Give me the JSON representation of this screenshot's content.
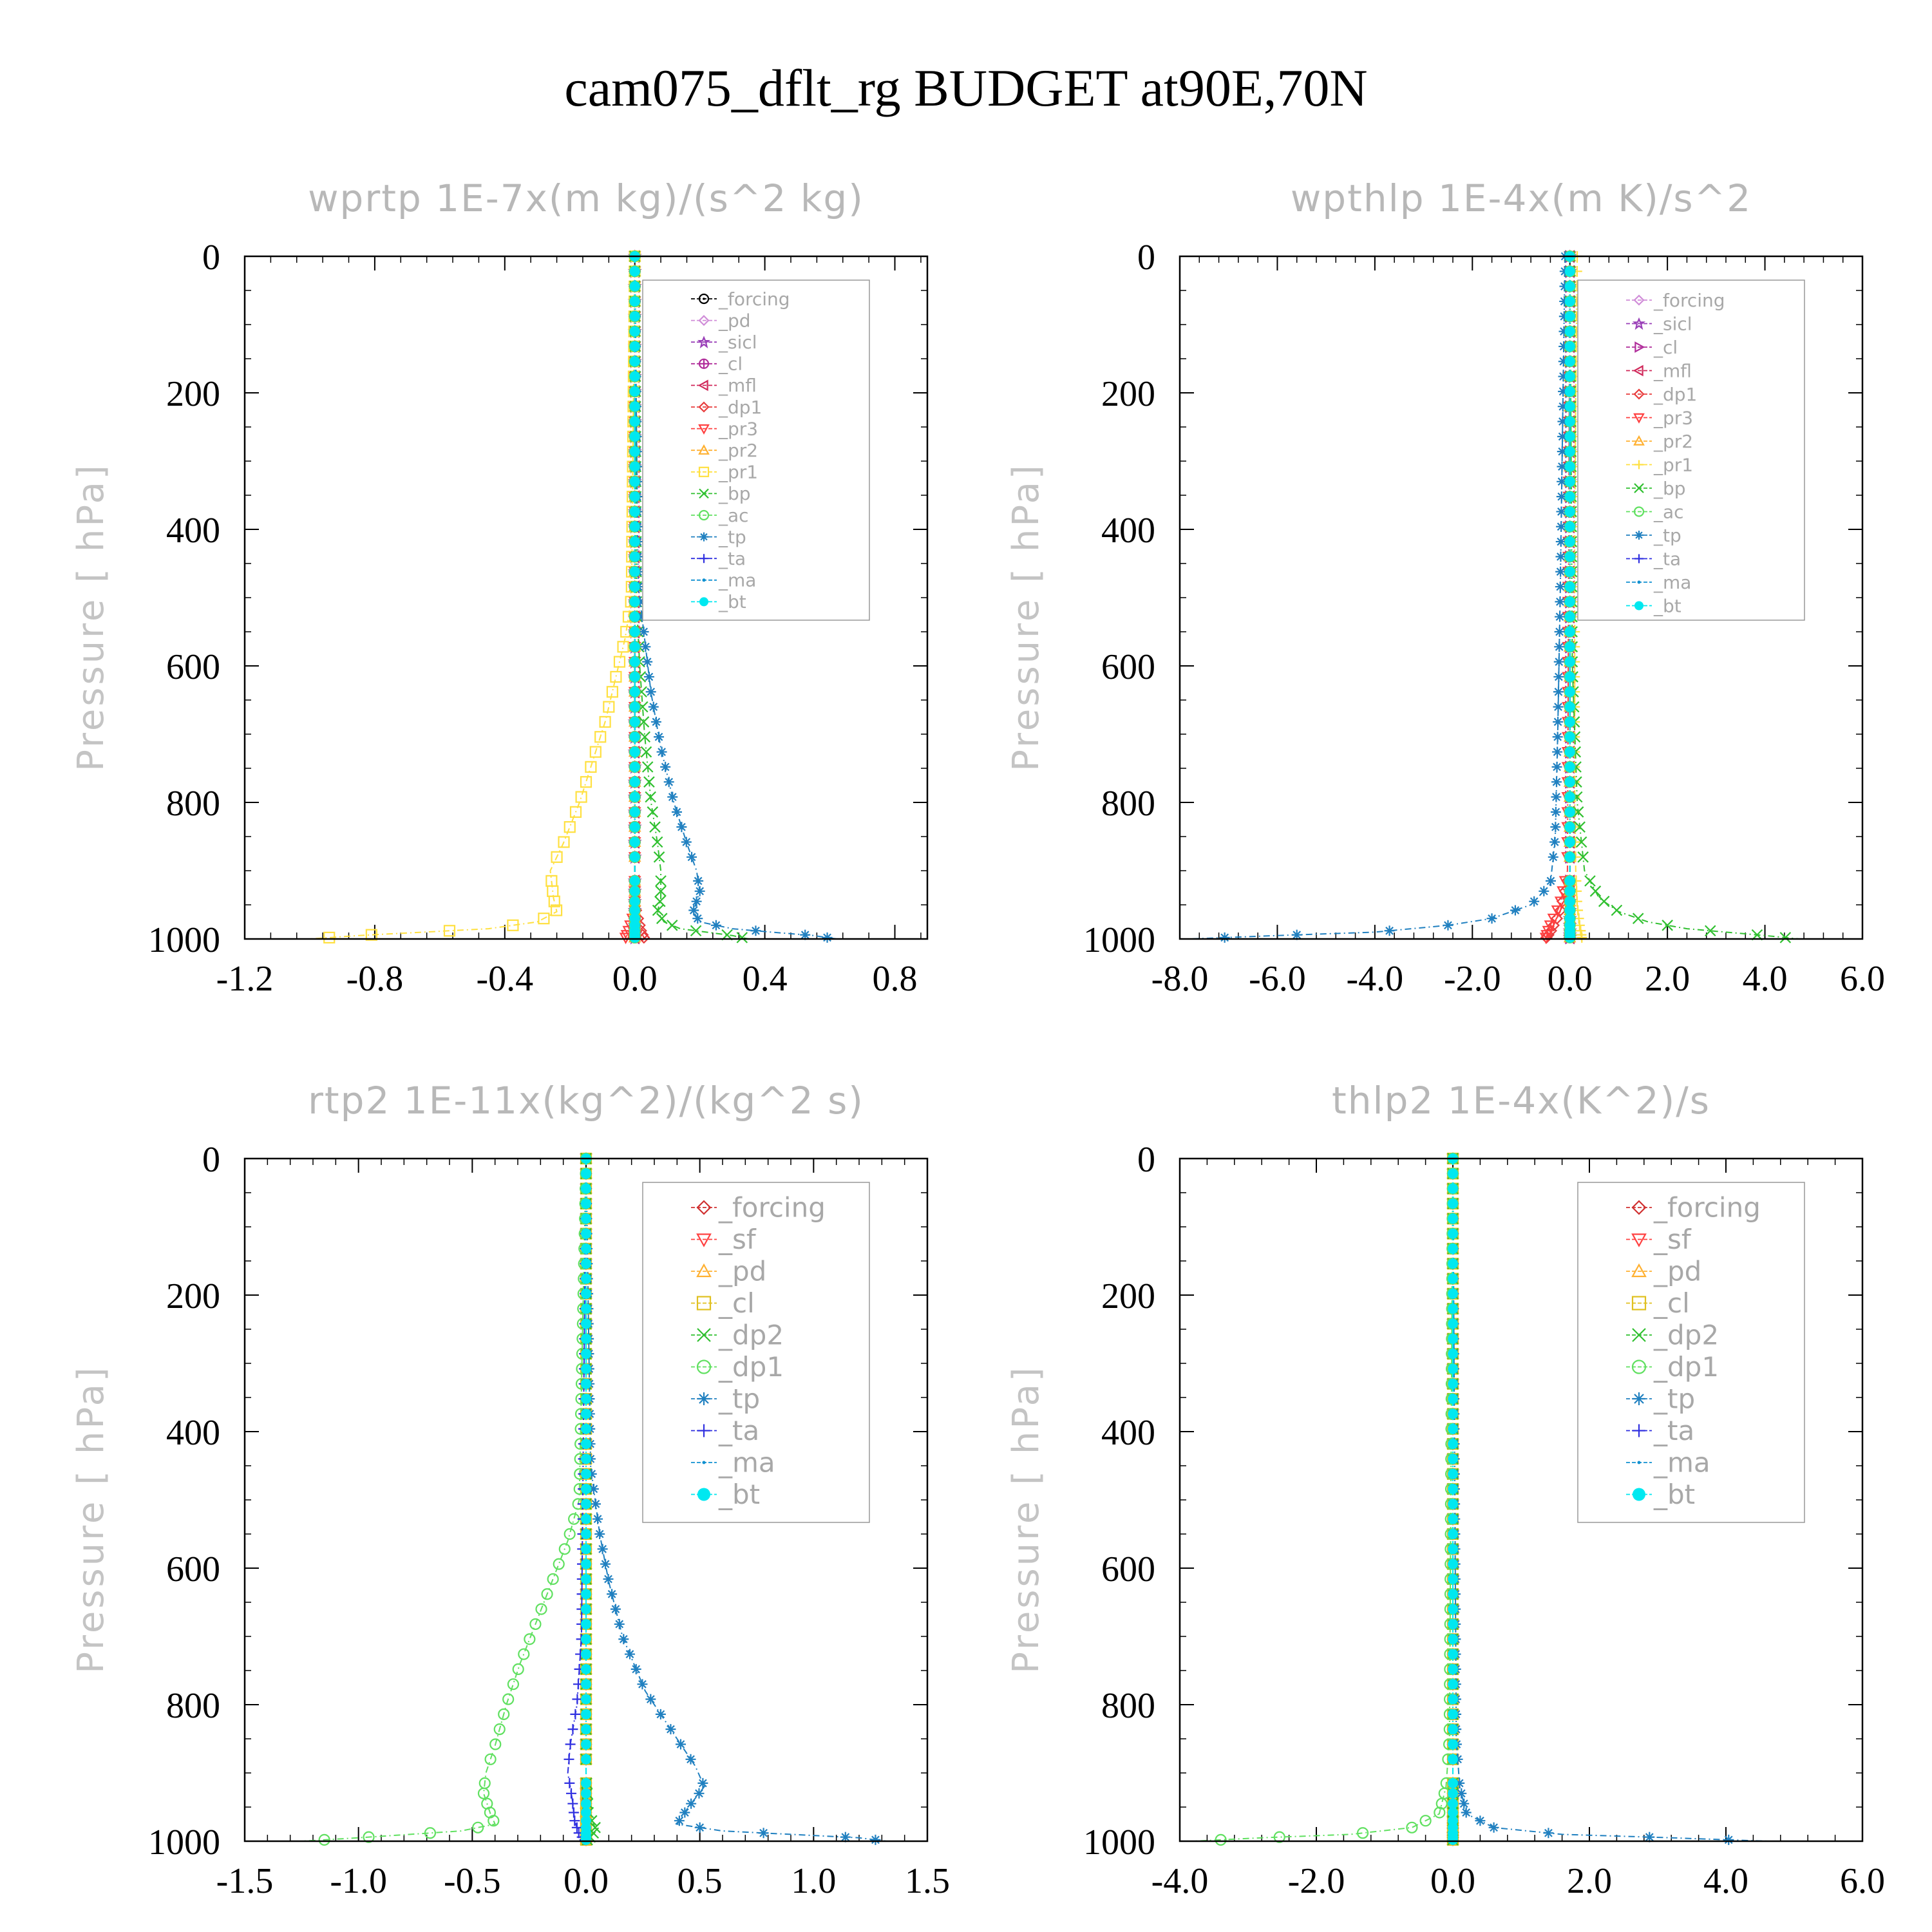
{
  "figure": {
    "title": "cam075_dflt_rg  BUDGET at90E,70N"
  },
  "chart_data": [
    {
      "type": "line",
      "title": "wprtp  1E-7x(m kg)/(s^2 kg)",
      "ylabel": "Pressure [ hPa]",
      "xlim": [
        -1.2,
        0.9
      ],
      "ylim": [
        0,
        1000
      ],
      "y_inverted": true,
      "xticks": [
        -1.2,
        -0.8,
        -0.4,
        0.0,
        0.4,
        0.8
      ],
      "xtick_labels": [
        "-1.2",
        "-0.8",
        "-0.4",
        "0.0",
        "0.4",
        "0.8"
      ],
      "yticks": [
        0,
        200,
        400,
        600,
        800,
        1000
      ],
      "legend_position": "top-right",
      "series": [
        {
          "name": "_forcing",
          "color": "#000000",
          "marker": "circle-dot",
          "pressure": [
            0,
            1000
          ],
          "values": [
            0,
            0
          ]
        },
        {
          "name": "_pd",
          "color": "#d08cd8",
          "marker": "diamond",
          "pressure": [
            0,
            1000
          ],
          "values": [
            0,
            0
          ]
        },
        {
          "name": "_sicl",
          "color": "#9a40b8",
          "marker": "star",
          "pressure": [
            0,
            1000
          ],
          "values": [
            0,
            0
          ]
        },
        {
          "name": "_cl",
          "color": "#b02c9a",
          "marker": "circle-plus",
          "pressure": [
            0,
            1000
          ],
          "values": [
            0,
            0
          ]
        },
        {
          "name": "_mfl",
          "color": "#d0285a",
          "marker": "triangle-left",
          "pressure": [
            0,
            1000
          ],
          "values": [
            0,
            0
          ]
        },
        {
          "name": "_dp1",
          "color": "#e83c3c",
          "marker": "diamond",
          "pressure": [
            0,
            950,
            990,
            1000
          ],
          "values": [
            0,
            0,
            0.02,
            0.03
          ]
        },
        {
          "name": "_pr3",
          "color": "#ff4040",
          "marker": "triangle-down",
          "pressure": [
            0,
            960,
            990,
            1000
          ],
          "values": [
            0,
            0,
            -0.02,
            -0.03
          ]
        },
        {
          "name": "_pr2",
          "color": "#ffb030",
          "marker": "triangle-up",
          "pressure": [
            0,
            1000
          ],
          "values": [
            0,
            0
          ]
        },
        {
          "name": "_pr1",
          "color": "#ffe040",
          "marker": "square",
          "pressure": [
            0,
            500,
            560,
            620,
            680,
            740,
            800,
            860,
            900,
            940,
            960,
            975,
            985,
            990,
            995,
            1000
          ],
          "values": [
            0,
            -0.01,
            -0.03,
            -0.06,
            -0.09,
            -0.13,
            -0.17,
            -0.22,
            -0.26,
            -0.25,
            -0.24,
            -0.3,
            -0.45,
            -0.65,
            -0.85,
            -1.0
          ]
        },
        {
          "name": "_bp",
          "color": "#30c030",
          "marker": "x",
          "pressure": [
            0,
            500,
            600,
            700,
            800,
            860,
            900,
            940,
            960,
            975,
            985,
            990,
            995,
            1000
          ],
          "values": [
            0,
            0.005,
            0.015,
            0.03,
            0.05,
            0.07,
            0.08,
            0.08,
            0.07,
            0.09,
            0.14,
            0.22,
            0.3,
            0.35
          ]
        },
        {
          "name": "_ac",
          "color": "#60e060",
          "marker": "circle",
          "pressure": [
            0,
            1000
          ],
          "values": [
            0,
            0
          ]
        },
        {
          "name": "_tp",
          "color": "#2080c0",
          "marker": "asterisk",
          "pressure": [
            0,
            480,
            560,
            640,
            720,
            800,
            860,
            900,
            930,
            960,
            975,
            985,
            990,
            995,
            1000
          ],
          "values": [
            0,
            0.01,
            0.03,
            0.05,
            0.08,
            0.12,
            0.16,
            0.19,
            0.2,
            0.18,
            0.2,
            0.3,
            0.42,
            0.55,
            0.62
          ]
        },
        {
          "name": "_ta",
          "color": "#3030e0",
          "marker": "plus",
          "pressure": [
            0,
            1000
          ],
          "values": [
            0,
            0
          ]
        },
        {
          "name": "_ma",
          "color": "#1090d0",
          "marker": "dot",
          "pressure": [
            0,
            1000
          ],
          "values": [
            0,
            0
          ]
        },
        {
          "name": "_bt",
          "color": "#00e8f0",
          "marker": "filled-circle",
          "pressure": [
            0,
            1000
          ],
          "values": [
            0,
            0
          ]
        }
      ]
    },
    {
      "type": "line",
      "title": "wpthlp  1E-4x(m K)/s^2",
      "ylabel": "Pressure [ hPa]",
      "xlim": [
        -8.0,
        6.0
      ],
      "ylim": [
        0,
        1000
      ],
      "y_inverted": true,
      "xticks": [
        -8.0,
        -6.0,
        -4.0,
        -2.0,
        0.0,
        2.0,
        4.0,
        6.0
      ],
      "xtick_labels": [
        "-8.0",
        "-6.0",
        "-4.0",
        "-2.0",
        "0.0",
        "2.0",
        "4.0",
        "6.0"
      ],
      "yticks": [
        0,
        200,
        400,
        600,
        800,
        1000
      ],
      "legend_position": "top-right",
      "series": [
        {
          "name": "_forcing",
          "color": "#d08cd8",
          "marker": "diamond",
          "pressure": [
            0,
            1000
          ],
          "values": [
            0,
            0
          ]
        },
        {
          "name": "_sicl",
          "color": "#9a40b8",
          "marker": "star",
          "pressure": [
            0,
            1000
          ],
          "values": [
            0,
            0
          ]
        },
        {
          "name": "_cl",
          "color": "#b02c9a",
          "marker": "triangle-right",
          "pressure": [
            0,
            1000
          ],
          "values": [
            0,
            0
          ]
        },
        {
          "name": "_mfl",
          "color": "#d0285a",
          "marker": "triangle-left",
          "pressure": [
            0,
            1000
          ],
          "values": [
            0,
            0
          ]
        },
        {
          "name": "_dp1",
          "color": "#e83c3c",
          "marker": "diamond",
          "pressure": [
            0,
            900,
            960,
            990,
            1000
          ],
          "values": [
            0,
            0,
            -0.2,
            -0.4,
            -0.5
          ]
        },
        {
          "name": "_pr3",
          "color": "#ff4040",
          "marker": "triangle-down",
          "pressure": [
            0,
            900,
            950,
            980,
            1000
          ],
          "values": [
            0,
            -0.05,
            -0.2,
            -0.4,
            -0.5
          ]
        },
        {
          "name": "_pr2",
          "color": "#ffb030",
          "marker": "triangle-up",
          "pressure": [
            0,
            1000
          ],
          "values": [
            0,
            0
          ]
        },
        {
          "name": "_pr1",
          "color": "#ffe040",
          "marker": "plus",
          "pressure": [
            0,
            200,
            400,
            600,
            800,
            900,
            950,
            980,
            1000
          ],
          "values": [
            0.15,
            0.12,
            0.1,
            0.1,
            0.1,
            0.12,
            0.15,
            0.2,
            0.25
          ]
        },
        {
          "name": "_bp",
          "color": "#30c030",
          "marker": "x",
          "pressure": [
            0,
            600,
            800,
            900,
            940,
            960,
            975,
            985,
            990,
            995,
            1000
          ],
          "values": [
            0,
            0.05,
            0.15,
            0.3,
            0.6,
            1.0,
            1.6,
            2.4,
            3.2,
            4.0,
            4.7
          ]
        },
        {
          "name": "_ac",
          "color": "#60e060",
          "marker": "circle",
          "pressure": [
            0,
            1000
          ],
          "values": [
            0,
            0
          ]
        },
        {
          "name": "_tp",
          "color": "#2080c0",
          "marker": "asterisk",
          "pressure": [
            0,
            500,
            700,
            850,
            920,
            950,
            970,
            980,
            990,
            995,
            1000
          ],
          "values": [
            -0.1,
            -0.2,
            -0.25,
            -0.3,
            -0.4,
            -0.8,
            -1.6,
            -2.5,
            -4.0,
            -6.0,
            -7.8
          ]
        },
        {
          "name": "_ta",
          "color": "#3030e0",
          "marker": "plus",
          "pressure": [
            0,
            1000
          ],
          "values": [
            0,
            0
          ]
        },
        {
          "name": "_ma",
          "color": "#1090d0",
          "marker": "dot",
          "pressure": [
            0,
            1000
          ],
          "values": [
            0,
            0
          ]
        },
        {
          "name": "_bt",
          "color": "#00e8f0",
          "marker": "filled-circle",
          "pressure": [
            0,
            1000
          ],
          "values": [
            0,
            0
          ]
        }
      ]
    },
    {
      "type": "line",
      "title": "rtp2  1E-11x(kg^2)/(kg^2 s)",
      "ylabel": "Pressure [ hPa]",
      "xlim": [
        -1.5,
        1.5
      ],
      "ylim": [
        0,
        1000
      ],
      "y_inverted": true,
      "xticks": [
        -1.5,
        -1.0,
        -0.5,
        0.0,
        0.5,
        1.0,
        1.5
      ],
      "xtick_labels": [
        "-1.5",
        "-1.0",
        "-0.5",
        "0.0",
        "0.5",
        "1.0",
        "1.5"
      ],
      "yticks": [
        0,
        200,
        400,
        600,
        800,
        1000
      ],
      "legend_position": "top-right",
      "series": [
        {
          "name": "_forcing",
          "color": "#d03030",
          "marker": "diamond",
          "pressure": [
            0,
            1000
          ],
          "values": [
            0,
            0
          ]
        },
        {
          "name": "_sf",
          "color": "#ff4040",
          "marker": "triangle-down",
          "pressure": [
            0,
            1000
          ],
          "values": [
            0,
            0
          ]
        },
        {
          "name": "_pd",
          "color": "#ffb030",
          "marker": "triangle-up",
          "pressure": [
            0,
            1000
          ],
          "values": [
            0,
            0
          ]
        },
        {
          "name": "_cl",
          "color": "#e0c020",
          "marker": "square",
          "pressure": [
            0,
            1000
          ],
          "values": [
            0,
            0
          ]
        },
        {
          "name": "_dp2",
          "color": "#30c030",
          "marker": "x",
          "pressure": [
            0,
            900,
            960,
            980,
            990,
            1000
          ],
          "values": [
            0,
            0,
            0.01,
            0.04,
            0.03,
            0
          ]
        },
        {
          "name": "_dp1",
          "color": "#60e060",
          "marker": "circle",
          "pressure": [
            0,
            500,
            560,
            620,
            680,
            740,
            800,
            860,
            900,
            930,
            960,
            975,
            985,
            995,
            1000
          ],
          "values": [
            0,
            -0.03,
            -0.08,
            -0.15,
            -0.22,
            -0.29,
            -0.35,
            -0.4,
            -0.44,
            -0.45,
            -0.42,
            -0.4,
            -0.55,
            -1.0,
            -1.25
          ]
        },
        {
          "name": "_tp",
          "color": "#2080c0",
          "marker": "asterisk",
          "pressure": [
            0,
            450,
            550,
            620,
            700,
            780,
            850,
            890,
            920,
            950,
            975,
            985,
            990,
            995,
            1000
          ],
          "values": [
            0,
            0.02,
            0.06,
            0.1,
            0.16,
            0.26,
            0.4,
            0.48,
            0.52,
            0.45,
            0.4,
            0.6,
            0.9,
            1.2,
            1.32
          ]
        },
        {
          "name": "_ta",
          "color": "#3030e0",
          "marker": "plus",
          "pressure": [
            0,
            700,
            800,
            860,
            900,
            940,
            970,
            990,
            1000
          ],
          "values": [
            0,
            -0.02,
            -0.04,
            -0.07,
            -0.08,
            -0.06,
            -0.05,
            -0.03,
            0
          ]
        },
        {
          "name": "_ma",
          "color": "#1090d0",
          "marker": "dot",
          "pressure": [
            0,
            1000
          ],
          "values": [
            0,
            0
          ]
        },
        {
          "name": "_bt",
          "color": "#00e8f0",
          "marker": "filled-circle",
          "pressure": [
            0,
            1000
          ],
          "values": [
            0,
            0
          ]
        }
      ]
    },
    {
      "type": "line",
      "title": "thlp2  1E-4x(K^2)/s",
      "ylabel": "Pressure [ hPa]",
      "xlim": [
        -4.0,
        6.0
      ],
      "ylim": [
        0,
        1000
      ],
      "y_inverted": true,
      "xticks": [
        -4.0,
        -2.0,
        0.0,
        2.0,
        4.0,
        6.0
      ],
      "xtick_labels": [
        "-4.0",
        "-2.0",
        "0.0",
        "2.0",
        "4.0",
        "6.0"
      ],
      "yticks": [
        0,
        200,
        400,
        600,
        800,
        1000
      ],
      "legend_position": "top-right",
      "series": [
        {
          "name": "_forcing",
          "color": "#d03030",
          "marker": "diamond",
          "pressure": [
            0,
            1000
          ],
          "values": [
            0,
            0
          ]
        },
        {
          "name": "_sf",
          "color": "#ff4040",
          "marker": "triangle-down",
          "pressure": [
            0,
            1000
          ],
          "values": [
            0,
            0
          ]
        },
        {
          "name": "_pd",
          "color": "#ffb030",
          "marker": "triangle-up",
          "pressure": [
            0,
            1000
          ],
          "values": [
            0,
            0
          ]
        },
        {
          "name": "_cl",
          "color": "#e0c020",
          "marker": "square",
          "pressure": [
            0,
            1000
          ],
          "values": [
            0,
            0
          ]
        },
        {
          "name": "_dp2",
          "color": "#30c030",
          "marker": "x",
          "pressure": [
            0,
            1000
          ],
          "values": [
            0,
            0
          ]
        },
        {
          "name": "_dp1",
          "color": "#60e060",
          "marker": "circle",
          "pressure": [
            0,
            850,
            920,
            960,
            980,
            990,
            995,
            1000
          ],
          "values": [
            0,
            -0.05,
            -0.1,
            -0.2,
            -0.6,
            -1.5,
            -2.8,
            -3.8
          ]
        },
        {
          "name": "_tp",
          "color": "#2080c0",
          "marker": "asterisk",
          "pressure": [
            0,
            850,
            920,
            960,
            980,
            990,
            995,
            1000
          ],
          "values": [
            0,
            0.05,
            0.1,
            0.2,
            0.6,
            1.6,
            3.2,
            4.6
          ]
        },
        {
          "name": "_ta",
          "color": "#3030e0",
          "marker": "plus",
          "pressure": [
            0,
            1000
          ],
          "values": [
            0,
            0
          ]
        },
        {
          "name": "_ma",
          "color": "#1090d0",
          "marker": "dot",
          "pressure": [
            0,
            1000
          ],
          "values": [
            0,
            0
          ]
        },
        {
          "name": "_bt",
          "color": "#00e8f0",
          "marker": "filled-circle",
          "pressure": [
            0,
            1000
          ],
          "values": [
            0,
            0
          ]
        }
      ]
    }
  ]
}
